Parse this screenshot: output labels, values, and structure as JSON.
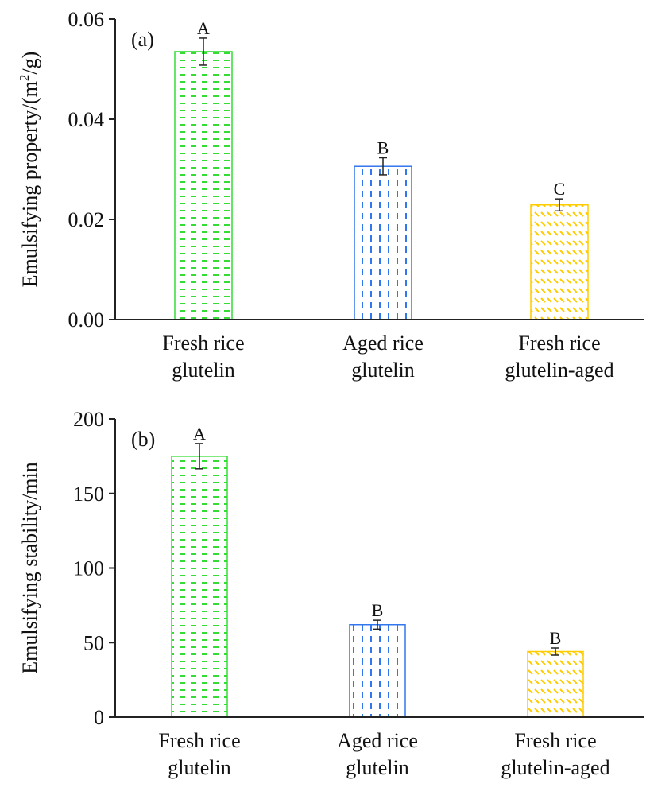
{
  "chart_data": [
    {
      "type": "bar",
      "panel_label": "(a)",
      "ylabel": "Emulsifying property/(m",
      "ylabel_sup": "2",
      "ylabel_end": "/g)",
      "ylim": [
        0,
        0.06
      ],
      "yticks": [
        0,
        0.02,
        0.04,
        0.06
      ],
      "ytick_labels": [
        "0.00",
        "0.02",
        "0.04",
        "0.06"
      ],
      "categories": [
        [
          "Fresh rice",
          "glutelin"
        ],
        [
          "Aged rice",
          "glutelin"
        ],
        [
          "Fresh rice",
          "glutelin-aged"
        ]
      ],
      "values": [
        0.0535,
        0.0306,
        0.0229
      ],
      "errors": [
        0.0027,
        0.0017,
        0.0012
      ],
      "letters": [
        "A",
        "B",
        "C"
      ],
      "colors": [
        "#33dd33",
        "#3377ee",
        "#ffcc00"
      ]
    },
    {
      "type": "bar",
      "panel_label": "(b)",
      "ylabel": "Emulsifying stability/min",
      "ylim": [
        0,
        200
      ],
      "yticks": [
        0,
        50,
        100,
        150,
        200
      ],
      "ytick_labels": [
        "0",
        "50",
        "100",
        "150",
        "200"
      ],
      "categories": [
        [
          "Fresh rice",
          "glutelin"
        ],
        [
          "Aged rice",
          "glutelin"
        ],
        [
          "Fresh rice",
          "glutelin-aged"
        ]
      ],
      "values": [
        175,
        62,
        44
      ],
      "errors": [
        8.5,
        3,
        2.4
      ],
      "letters": [
        "A",
        "B",
        "B"
      ],
      "colors": [
        "#33dd33",
        "#3377ee",
        "#ffcc00"
      ]
    }
  ]
}
